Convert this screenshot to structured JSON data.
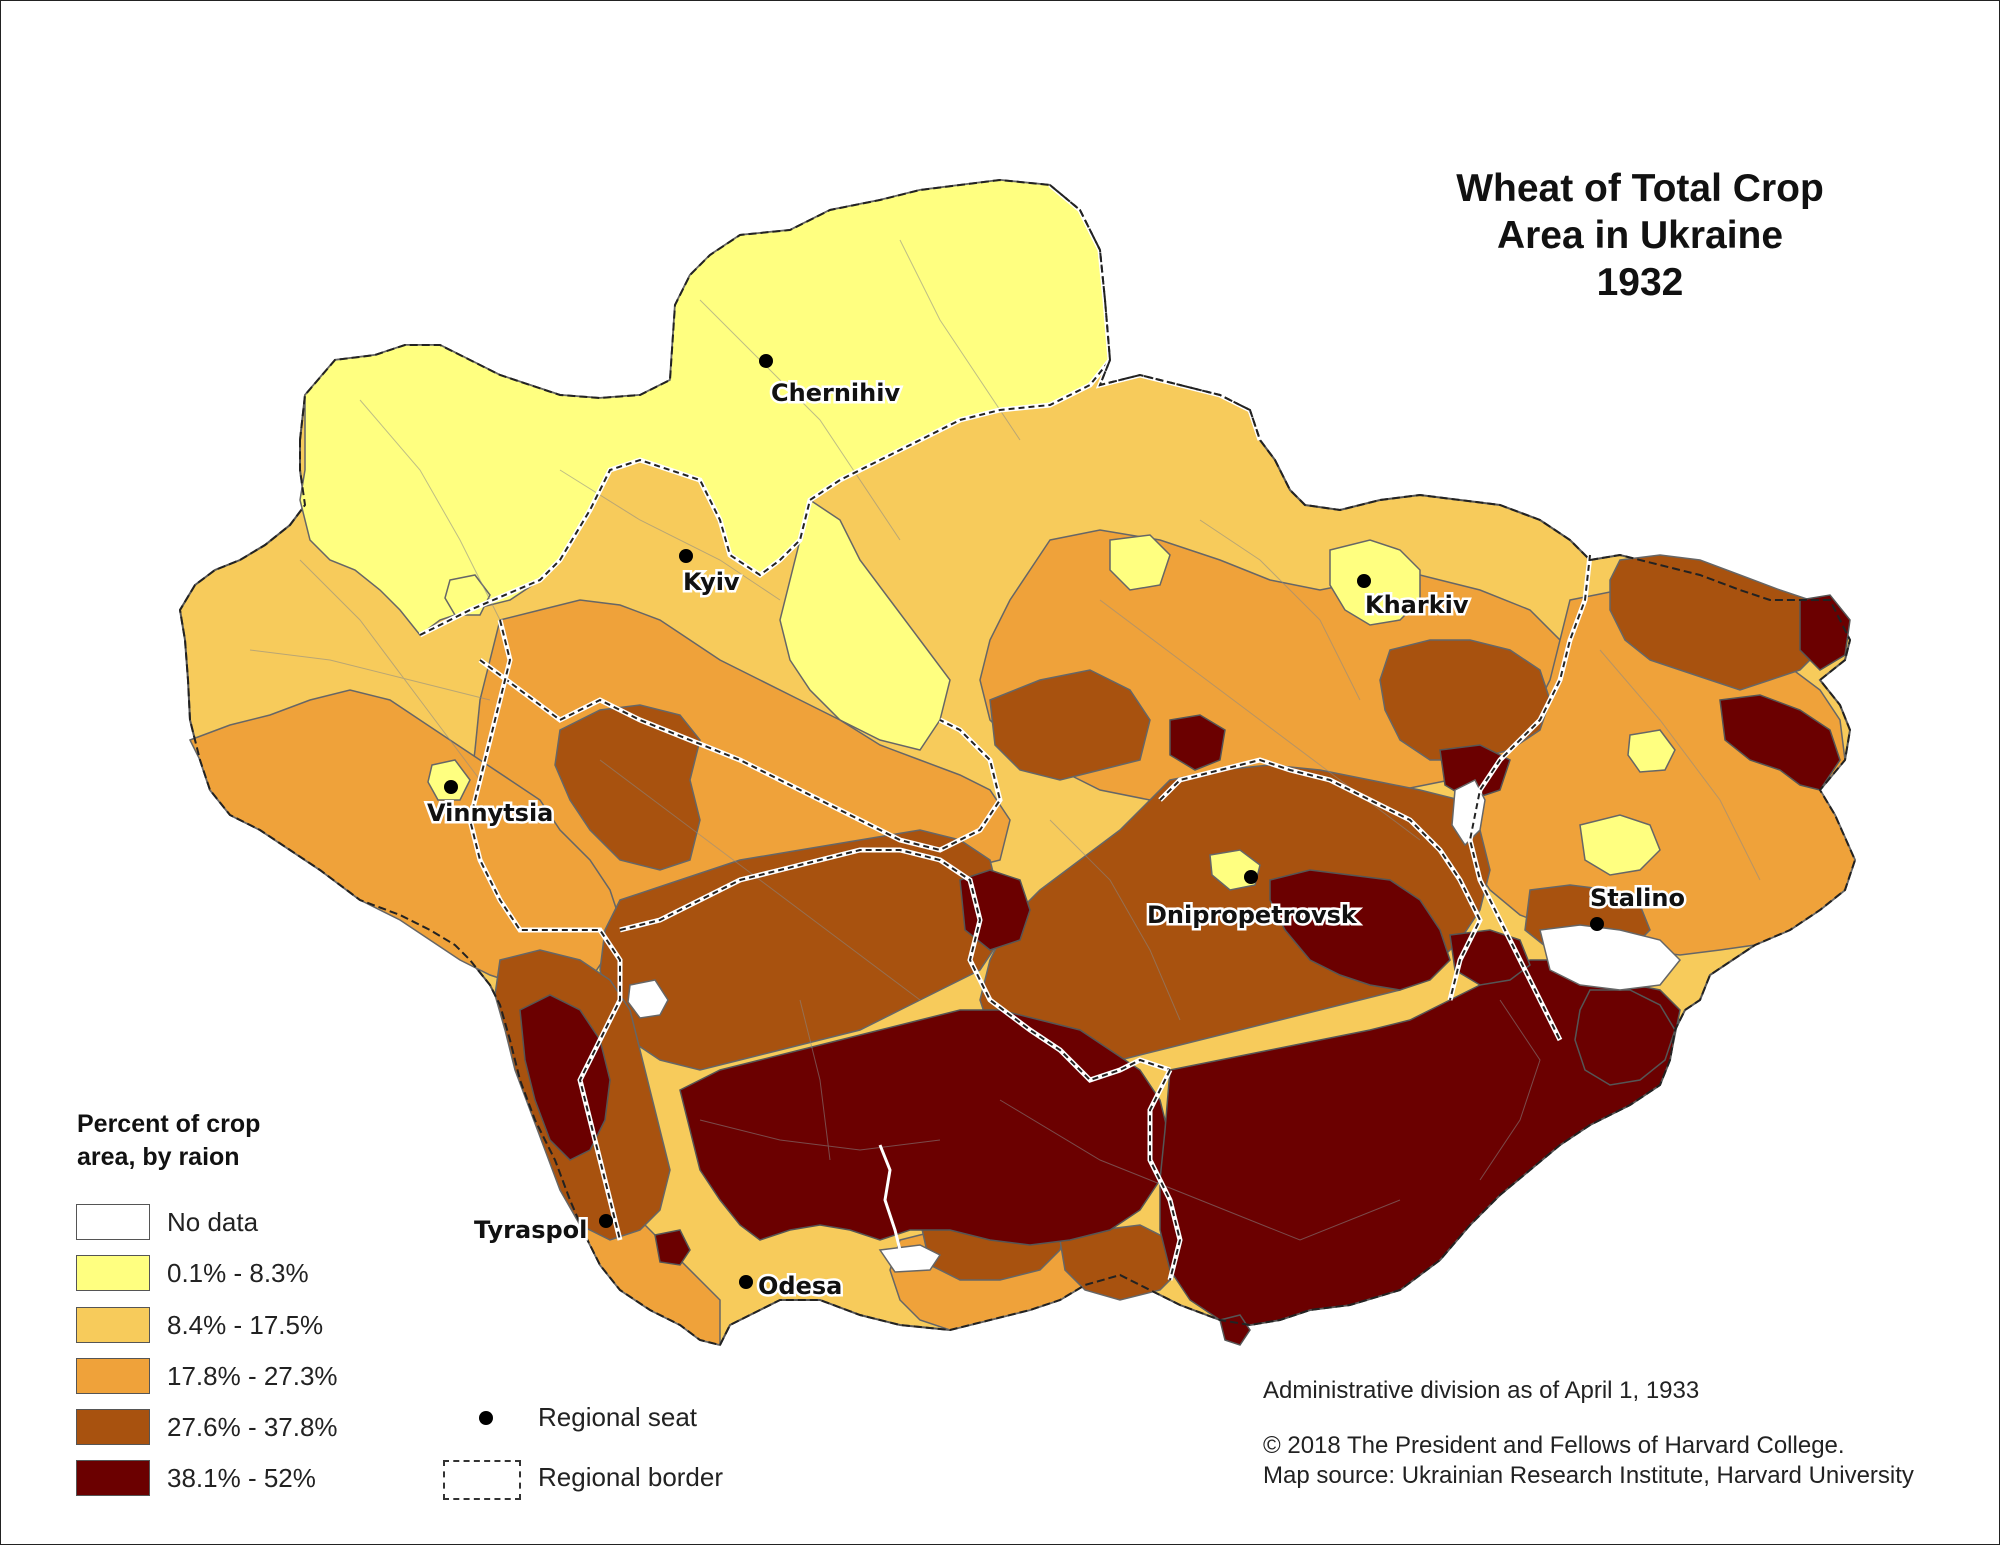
{
  "title": {
    "line1": "Wheat of Total Crop",
    "line2": "Area in Ukraine",
    "line3": "1932"
  },
  "legend": {
    "heading_line1": "Percent of crop",
    "heading_line2": "area, by raion",
    "classes": [
      {
        "label": "No data",
        "color": "#ffffff"
      },
      {
        "label": "0.1% - 8.3%",
        "color": "#ffff80"
      },
      {
        "label": "8.4% - 17.5%",
        "color": "#f7cb5b"
      },
      {
        "label": "17.8% - 27.3%",
        "color": "#efa23a"
      },
      {
        "label": "27.6% - 37.8%",
        "color": "#a8520f"
      },
      {
        "label": "38.1% - 52%",
        "color": "#6b0000"
      }
    ]
  },
  "symbols": {
    "regional_seat": "Regional seat",
    "regional_border": "Regional border"
  },
  "cities": [
    {
      "name": "Chernihiv"
    },
    {
      "name": "Kyiv"
    },
    {
      "name": "Kharkiv"
    },
    {
      "name": "Vinnytsia"
    },
    {
      "name": "Dnipropetrovsk"
    },
    {
      "name": "Stalino"
    },
    {
      "name": "Tyraspol"
    },
    {
      "name": "Odesa"
    }
  ],
  "notes": {
    "admin_division": "Administrative division as of April 1, 1933",
    "copyright": "© 2018 The President and Fellows of Harvard College.",
    "source": "Map source: Ukrainian Research Institute, Harvard University"
  }
}
